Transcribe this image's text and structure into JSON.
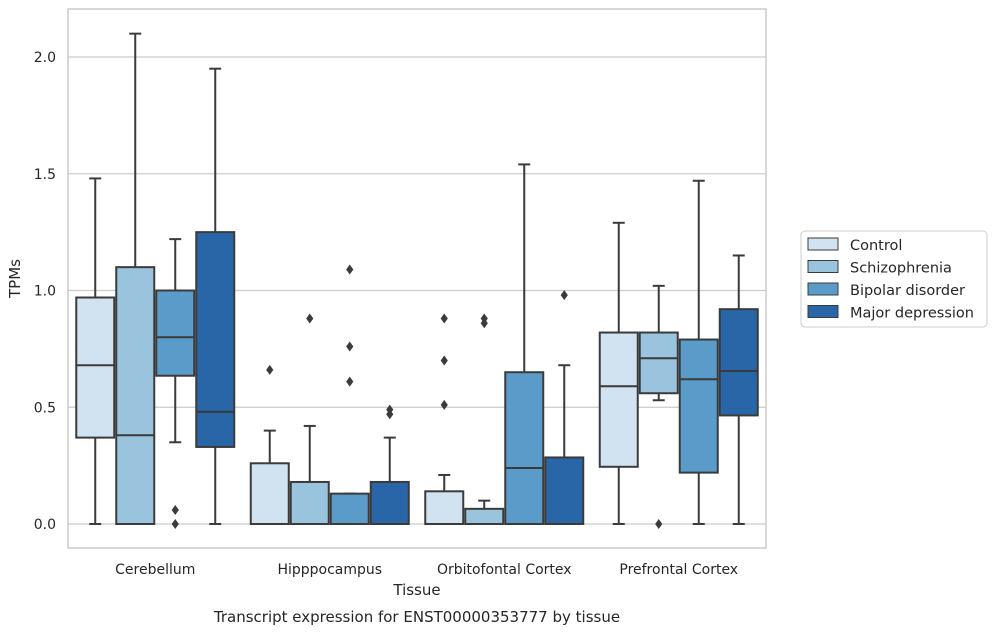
{
  "chart_data": {
    "type": "boxplot",
    "title": "",
    "caption": "Transcript expression for ENST00000353777 by tissue",
    "xlabel": "Tissue",
    "ylabel": "TPMs",
    "ylim": [
      -0.1,
      2.22
    ],
    "yticks": [
      0.0,
      0.5,
      1.0,
      1.5,
      2.0
    ],
    "ytick_labels": [
      "0.0",
      "0.5",
      "1.0",
      "1.5",
      "2.0"
    ],
    "grid": "horizontal",
    "legend_position": "right",
    "categories": [
      "Cerebellum",
      "Hipppocampus",
      "Orbitofontal Cortex",
      "Prefrontal Cortex"
    ],
    "series": [
      {
        "name": "Control",
        "color": "#d1e2f0",
        "boxes": [
          {
            "whislo": 0.0,
            "q1": 0.37,
            "med": 0.68,
            "q3": 0.97,
            "whishi": 1.48,
            "fliers": []
          },
          {
            "whislo": 0.0,
            "q1": 0.0,
            "med": 0.0,
            "q3": 0.26,
            "whishi": 0.4,
            "fliers": [
              0.66
            ]
          },
          {
            "whislo": 0.0,
            "q1": 0.0,
            "med": 0.0,
            "q3": 0.14,
            "whishi": 0.21,
            "fliers": [
              0.51,
              0.7,
              0.88
            ]
          },
          {
            "whislo": 0.0,
            "q1": 0.245,
            "med": 0.59,
            "q3": 0.82,
            "whishi": 1.29,
            "fliers": []
          }
        ]
      },
      {
        "name": "Schizophrenia",
        "color": "#9ac4dd",
        "boxes": [
          {
            "whislo": 0.0,
            "q1": 0.0,
            "med": 0.38,
            "q3": 1.1,
            "whishi": 2.1,
            "fliers": []
          },
          {
            "whislo": 0.0,
            "q1": 0.0,
            "med": 0.0,
            "q3": 0.18,
            "whishi": 0.42,
            "fliers": [
              0.88
            ]
          },
          {
            "whislo": 0.0,
            "q1": 0.0,
            "med": 0.0,
            "q3": 0.065,
            "whishi": 0.1,
            "fliers": [
              0.86,
              0.88
            ]
          },
          {
            "whislo": 0.53,
            "q1": 0.56,
            "med": 0.71,
            "q3": 0.82,
            "whishi": 1.02,
            "fliers": [
              0.0
            ]
          }
        ]
      },
      {
        "name": "Bipolar disorder",
        "color": "#5b9bc9",
        "boxes": [
          {
            "whislo": 0.35,
            "q1": 0.635,
            "med": 0.8,
            "q3": 1.0,
            "whishi": 1.22,
            "fliers": [
              0.0,
              0.06
            ]
          },
          {
            "whislo": 0.0,
            "q1": 0.0,
            "med": 0.0,
            "q3": 0.13,
            "whishi": 0.13,
            "fliers": [
              0.61,
              0.76,
              1.09
            ]
          },
          {
            "whislo": 0.0,
            "q1": 0.0,
            "med": 0.24,
            "q3": 0.65,
            "whishi": 1.54,
            "fliers": []
          },
          {
            "whislo": 0.0,
            "q1": 0.22,
            "med": 0.62,
            "q3": 0.79,
            "whishi": 1.47,
            "fliers": []
          }
        ]
      },
      {
        "name": "Major depression",
        "color": "#2966a7",
        "boxes": [
          {
            "whislo": 0.0,
            "q1": 0.33,
            "med": 0.48,
            "q3": 1.25,
            "whishi": 1.95,
            "fliers": []
          },
          {
            "whislo": 0.0,
            "q1": 0.0,
            "med": 0.0,
            "q3": 0.18,
            "whishi": 0.37,
            "fliers": [
              0.47,
              0.49
            ]
          },
          {
            "whislo": 0.0,
            "q1": 0.0,
            "med": 0.0,
            "q3": 0.285,
            "whishi": 0.68,
            "fliers": [
              0.98
            ]
          },
          {
            "whislo": 0.0,
            "q1": 0.465,
            "med": 0.655,
            "q3": 0.92,
            "whishi": 1.15,
            "fliers": []
          }
        ]
      }
    ]
  }
}
